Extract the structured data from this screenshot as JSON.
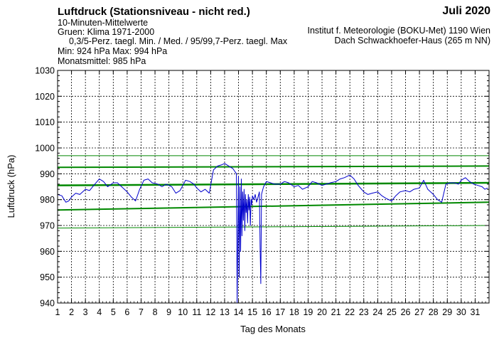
{
  "header": {
    "title": "Luftdruck (Stationsniveau - nicht red.)",
    "subtitle1": "10-Minuten-Mittelwerte",
    "subtitle2": "Gruen: Klima 1971-2000",
    "subtitle3": "0,3/5-Perz. taegl. Min. / Med. / 95/99,7-Perz. taegl. Max",
    "minmax": "Min:  924 hPa   Max:  994 hPa",
    "monthly_mean": "Monatsmittel:  985 hPa",
    "month": "Juli 2020",
    "institute": "Institut f. Meteorologie (BOKU-Met) 1190 Wien",
    "location": "Dach Schwackhoefer-Haus (265 m NN)"
  },
  "chart_data": {
    "type": "line",
    "xlabel": "Tag des Monats",
    "ylabel": "Luftdruck (hPa)",
    "ylim": [
      940,
      1030
    ],
    "xlim": [
      1,
      32
    ],
    "x_ticks": [
      "1",
      "2",
      "3",
      "4",
      "5",
      "6",
      "7",
      "8",
      "9",
      "10",
      "11",
      "12",
      "13",
      "14",
      "15",
      "16",
      "17",
      "18",
      "19",
      "20",
      "21",
      "22",
      "23",
      "24",
      "25",
      "26",
      "27",
      "28",
      "29",
      "30",
      "31"
    ],
    "y_ticks": [
      940,
      950,
      960,
      970,
      980,
      990,
      1000,
      1010,
      1020,
      1030
    ],
    "grid": true,
    "colors": {
      "observed": "#0000cc",
      "climate": "#008800"
    },
    "climate_series": [
      {
        "name": "0,3-Perz. taegl. Min.",
        "x": [
          1,
          32
        ],
        "y": [
          969.0,
          970.0
        ],
        "width": 1
      },
      {
        "name": "5-Perz. taegl. Min.",
        "x": [
          1,
          32
        ],
        "y": [
          976.0,
          979.0
        ],
        "width": 2
      },
      {
        "name": "Med.",
        "x": [
          1,
          32
        ],
        "y": [
          985.5,
          986.5
        ],
        "width": 2.5
      },
      {
        "name": "95-Perz. taegl. Max",
        "x": [
          1,
          32
        ],
        "y": [
          992.5,
          993.0
        ],
        "width": 2
      },
      {
        "name": "99,7-Perz. taegl. Max",
        "x": [
          1,
          32
        ],
        "y": [
          997.0,
          997.0
        ],
        "width": 1
      }
    ],
    "observed_series": {
      "name": "10-Minuten-Mittelwerte",
      "x": [
        1.0,
        1.3,
        1.6,
        1.8,
        2.0,
        2.3,
        2.6,
        3.0,
        3.3,
        3.6,
        4.0,
        4.3,
        4.6,
        5.0,
        5.3,
        5.6,
        6.0,
        6.3,
        6.6,
        6.9,
        7.2,
        7.5,
        7.8,
        8.2,
        8.5,
        8.8,
        9.2,
        9.5,
        9.8,
        10.2,
        10.5,
        10.8,
        11.0,
        11.3,
        11.6,
        11.9,
        12.2,
        12.5,
        12.8,
        13.0,
        13.3,
        13.6,
        13.85,
        13.9,
        14.0,
        14.05,
        14.1,
        14.15,
        14.2,
        14.25,
        14.3,
        14.35,
        14.4,
        14.45,
        14.5,
        14.55,
        14.6,
        14.65,
        14.7,
        14.75,
        14.8,
        14.85,
        14.9,
        14.95,
        15.0,
        15.1,
        15.2,
        15.3,
        15.4,
        15.5,
        15.55,
        15.6,
        15.65,
        15.7,
        15.75,
        15.8,
        15.9,
        16.0,
        16.3,
        16.6,
        17.0,
        17.3,
        17.6,
        18.0,
        18.3,
        18.6,
        19.0,
        19.3,
        19.6,
        20.0,
        20.3,
        20.6,
        21.0,
        21.3,
        21.6,
        22.0,
        22.3,
        22.6,
        23.0,
        23.3,
        23.6,
        24.0,
        24.3,
        24.6,
        25.0,
        25.3,
        25.6,
        26.0,
        26.3,
        26.6,
        27.0,
        27.3,
        27.6,
        28.0,
        28.3,
        28.6,
        28.9,
        29.2,
        29.5,
        29.8,
        30.0,
        30.3,
        30.6,
        30.9,
        31.2,
        31.5,
        31.7,
        31.9
      ],
      "y": [
        982.0,
        981.5,
        979.0,
        979.5,
        981.0,
        982.5,
        982.0,
        984.0,
        983.5,
        985.5,
        988.0,
        987.0,
        985.0,
        986.5,
        986.5,
        985.0,
        983.0,
        981.0,
        979.5,
        984.0,
        987.5,
        988.0,
        986.5,
        986.0,
        985.0,
        986.0,
        985.0,
        982.5,
        983.5,
        987.5,
        987.0,
        986.0,
        984.5,
        983.0,
        984.0,
        982.5,
        991.5,
        993.0,
        993.5,
        994.0,
        993.0,
        992.0,
        990.0,
        940.0,
        989.0,
        950.0,
        985.0,
        960.0,
        988.0,
        966.0,
        983.0,
        972.0,
        984.0,
        968.0,
        982.0,
        975.0,
        980.0,
        971.0,
        982.0,
        976.0,
        981.0,
        970.0,
        980.0,
        978.0,
        981.5,
        980.0,
        982.0,
        979.0,
        981.0,
        983.0,
        962.0,
        947.5,
        982.0,
        983.0,
        984.0,
        985.0,
        986.0,
        987.0,
        986.5,
        986.0,
        986.0,
        987.0,
        986.5,
        985.0,
        985.5,
        984.0,
        985.0,
        987.0,
        986.5,
        985.5,
        986.0,
        986.5,
        987.0,
        988.0,
        988.5,
        989.5,
        988.0,
        985.5,
        983.0,
        982.0,
        982.5,
        983.0,
        981.5,
        980.5,
        979.5,
        981.5,
        983.0,
        983.5,
        983.0,
        984.0,
        984.5,
        987.5,
        984.0,
        982.0,
        980.0,
        979.0,
        986.0,
        986.5,
        986.5,
        986.0,
        987.5,
        988.5,
        987.0,
        986.0,
        985.5,
        985.0,
        984.0,
        984.5
      ]
    }
  }
}
